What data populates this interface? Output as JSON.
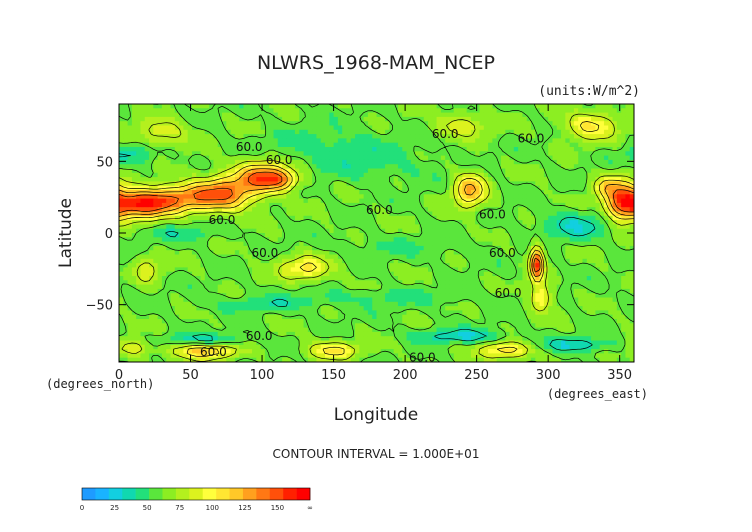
{
  "chart_data": {
    "type": "heatmap",
    "title": "NLWRS_1968-MAM_NCEP",
    "units_note": "(units:W/m^2)",
    "xlabel": "Longitude",
    "ylabel": "Latitude",
    "x_unit_note": "(degrees_east)",
    "y_unit_note": "(degrees_north)",
    "xlim": [
      0,
      360
    ],
    "ylim": [
      -90,
      90
    ],
    "x_ticks": [
      "0",
      "50",
      "100",
      "150",
      "200",
      "250",
      "300",
      "350"
    ],
    "x_tick_values": [
      0,
      50,
      100,
      150,
      200,
      250,
      300,
      350
    ],
    "y_ticks": [
      "50",
      "0",
      "−50"
    ],
    "y_tick_values": [
      50,
      0,
      -50
    ],
    "contour_interval_text": "CONTOUR INTERVAL = 1.000E+01",
    "contour_labels": [
      {
        "text": "60.0",
        "lon": 228,
        "lat": 69
      },
      {
        "text": "60.0",
        "lon": 288,
        "lat": 66
      },
      {
        "text": "60.0",
        "lon": 91,
        "lat": 60
      },
      {
        "text": "60.0",
        "lon": 112,
        "lat": 51
      },
      {
        "text": "60.0",
        "lon": 182,
        "lat": 16
      },
      {
        "text": "60.0",
        "lon": 261,
        "lat": 13
      },
      {
        "text": "60.0",
        "lon": 72,
        "lat": 9
      },
      {
        "text": "60.0",
        "lon": 102,
        "lat": -14
      },
      {
        "text": "60.0",
        "lon": 268,
        "lat": -14
      },
      {
        "text": "60.0",
        "lon": 272,
        "lat": -42
      },
      {
        "text": "60.0",
        "lon": 98,
        "lat": -72
      },
      {
        "text": "60.0",
        "lon": 66,
        "lat": -83
      },
      {
        "text": "60.0",
        "lon": 212,
        "lat": -87
      }
    ],
    "colorbar": {
      "tick_labels": [
        "0",
        "25",
        "50",
        "75",
        "100",
        "125",
        "150",
        "∞"
      ],
      "tick_values": [
        0,
        25,
        50,
        75,
        100,
        125,
        150,
        175
      ],
      "colors": [
        "#1e9bff",
        "#19b3ff",
        "#12cfe0",
        "#10d8b0",
        "#22e07a",
        "#5ae63c",
        "#8cee22",
        "#b4f01e",
        "#dcf21e",
        "#ffff3c",
        "#ffe632",
        "#ffc828",
        "#ffa01e",
        "#ff7814",
        "#ff500a",
        "#ff2000",
        "#ff0000"
      ]
    },
    "field": {
      "background": 60,
      "features": [
        {
          "lon": 15,
          "lat": 20,
          "peak": 160,
          "rx": 18,
          "ry": 8
        },
        {
          "lon": 45,
          "lat": 25,
          "peak": 120,
          "rx": 20,
          "ry": 8
        },
        {
          "lon": 75,
          "lat": 28,
          "peak": 130,
          "rx": 18,
          "ry": 10
        },
        {
          "lon": 100,
          "lat": 40,
          "peak": 125,
          "rx": 15,
          "ry": 9
        },
        {
          "lon": 112,
          "lat": 37,
          "peak": 110,
          "rx": 12,
          "ry": 6
        },
        {
          "lon": 245,
          "lat": 30,
          "peak": 125,
          "rx": 9,
          "ry": 10
        },
        {
          "lon": 352,
          "lat": 22,
          "peak": 140,
          "rx": 10,
          "ry": 12
        },
        {
          "lon": 130,
          "lat": -25,
          "peak": 105,
          "rx": 15,
          "ry": 7
        },
        {
          "lon": 292,
          "lat": -22,
          "peak": 155,
          "rx": 4,
          "ry": 10
        },
        {
          "lon": 295,
          "lat": -45,
          "peak": 105,
          "rx": 6,
          "ry": 8
        },
        {
          "lon": 20,
          "lat": -25,
          "peak": 90,
          "rx": 7,
          "ry": 8
        },
        {
          "lon": 330,
          "lat": 75,
          "peak": 105,
          "rx": 15,
          "ry": 8
        },
        {
          "lon": 340,
          "lat": 32,
          "peak": 95,
          "rx": 8,
          "ry": 6
        },
        {
          "lon": 60,
          "lat": -82,
          "peak": 115,
          "rx": 20,
          "ry": 5
        },
        {
          "lon": 150,
          "lat": -82,
          "peak": 105,
          "rx": 15,
          "ry": 5
        },
        {
          "lon": 270,
          "lat": -82,
          "peak": 110,
          "rx": 15,
          "ry": 5
        },
        {
          "lon": 10,
          "lat": -80,
          "peak": 90,
          "rx": 10,
          "ry": 5
        },
        {
          "lon": 30,
          "lat": 70,
          "peak": 90,
          "rx": 15,
          "ry": 8
        },
        {
          "lon": 240,
          "lat": 75,
          "peak": 90,
          "rx": 15,
          "ry": 7
        },
        {
          "lon": 180,
          "lat": 45,
          "peak": 50,
          "rx": 40,
          "ry": 8
        },
        {
          "lon": 320,
          "lat": 5,
          "peak": 35,
          "rx": 22,
          "ry": 8
        },
        {
          "lon": 40,
          "lat": 0,
          "peak": 45,
          "rx": 25,
          "ry": 5
        },
        {
          "lon": 200,
          "lat": -10,
          "peak": 50,
          "rx": 40,
          "ry": 6
        },
        {
          "lon": 180,
          "lat": -45,
          "peak": 48,
          "rx": 60,
          "ry": 5
        },
        {
          "lon": 100,
          "lat": -50,
          "peak": 45,
          "rx": 30,
          "ry": 4
        },
        {
          "lon": 60,
          "lat": -75,
          "peak": 30,
          "rx": 25,
          "ry": 4
        },
        {
          "lon": 240,
          "lat": -72,
          "peak": 30,
          "rx": 25,
          "ry": 4
        },
        {
          "lon": 320,
          "lat": -78,
          "peak": 30,
          "rx": 20,
          "ry": 4
        },
        {
          "lon": 150,
          "lat": 60,
          "peak": 45,
          "rx": 40,
          "ry": 10
        },
        {
          "lon": 10,
          "lat": 55,
          "peak": 40,
          "rx": 15,
          "ry": 6
        }
      ]
    }
  }
}
